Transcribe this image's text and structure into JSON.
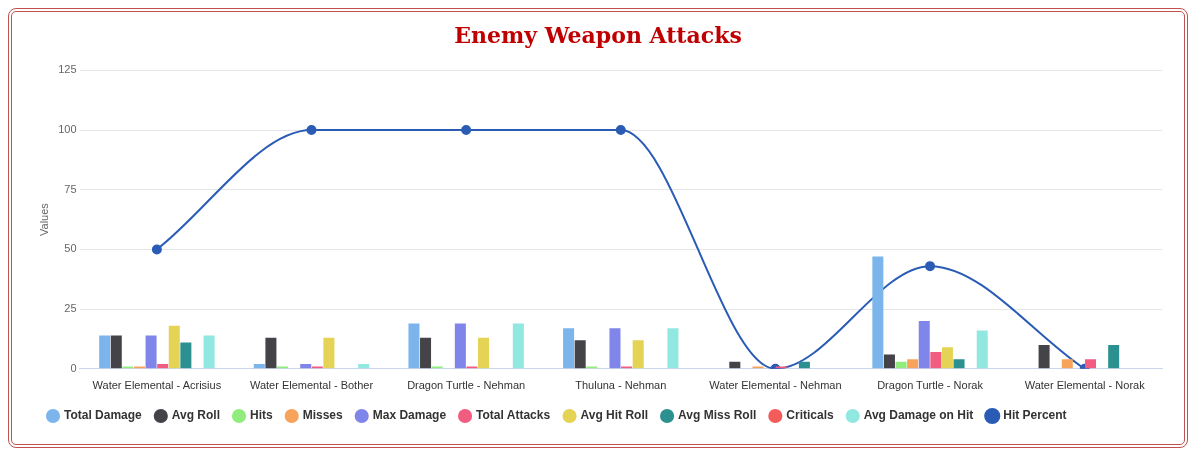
{
  "chart_data": {
    "type": "bar",
    "title": "Enemy Weapon Attacks",
    "ylabel": "Values",
    "categories": [
      "Water Elemental - Acrisius",
      "Water Elemental - Bother",
      "Dragon Turtle - Nehman",
      "Thuluna - Nehman",
      "Water Elemental - Nehman",
      "Dragon Turtle - Norak",
      "Water Elemental - Norak"
    ],
    "series": [
      {
        "name": "Total Damage",
        "color": "#7cb5ec",
        "values": [
          14,
          2,
          19,
          17,
          0,
          47,
          0
        ]
      },
      {
        "name": "Avg Roll",
        "color": "#434348",
        "values": [
          14,
          13,
          13,
          12,
          3,
          6,
          10
        ]
      },
      {
        "name": "Hits",
        "color": "#90ed7d",
        "values": [
          1,
          1,
          1,
          1,
          0,
          3,
          0
        ]
      },
      {
        "name": "Misses",
        "color": "#f7a35c",
        "values": [
          1,
          0,
          0,
          0,
          1,
          4,
          4
        ]
      },
      {
        "name": "Max Damage",
        "color": "#8085e9",
        "values": [
          14,
          2,
          19,
          17,
          0,
          20,
          0
        ]
      },
      {
        "name": "Total Attacks",
        "color": "#f15c80",
        "values": [
          2,
          1,
          1,
          1,
          1,
          7,
          4
        ]
      },
      {
        "name": "Avg Hit Roll",
        "color": "#e4d354",
        "values": [
          18,
          13,
          13,
          12,
          0,
          9,
          0
        ]
      },
      {
        "name": "Avg Miss Roll",
        "color": "#2b908f",
        "values": [
          11,
          0,
          0,
          0,
          3,
          4,
          10
        ]
      },
      {
        "name": "Criticals",
        "color": "#f45b5b",
        "values": [
          0,
          0,
          0,
          0,
          0,
          0,
          0
        ]
      },
      {
        "name": "Avg Damage on Hit",
        "color": "#91e8e1",
        "values": [
          14,
          2,
          19,
          17,
          0,
          16,
          0
        ]
      },
      {
        "name": "Hit Percent",
        "type": "line",
        "color": "#2b5cb5",
        "values": [
          50,
          100,
          100,
          100,
          0,
          43,
          0
        ]
      }
    ],
    "ylim": [
      0,
      125
    ],
    "yticks": [
      0,
      25,
      50,
      75,
      100,
      125
    ],
    "grid": "y",
    "legend": "bottom",
    "marker": "circle"
  }
}
